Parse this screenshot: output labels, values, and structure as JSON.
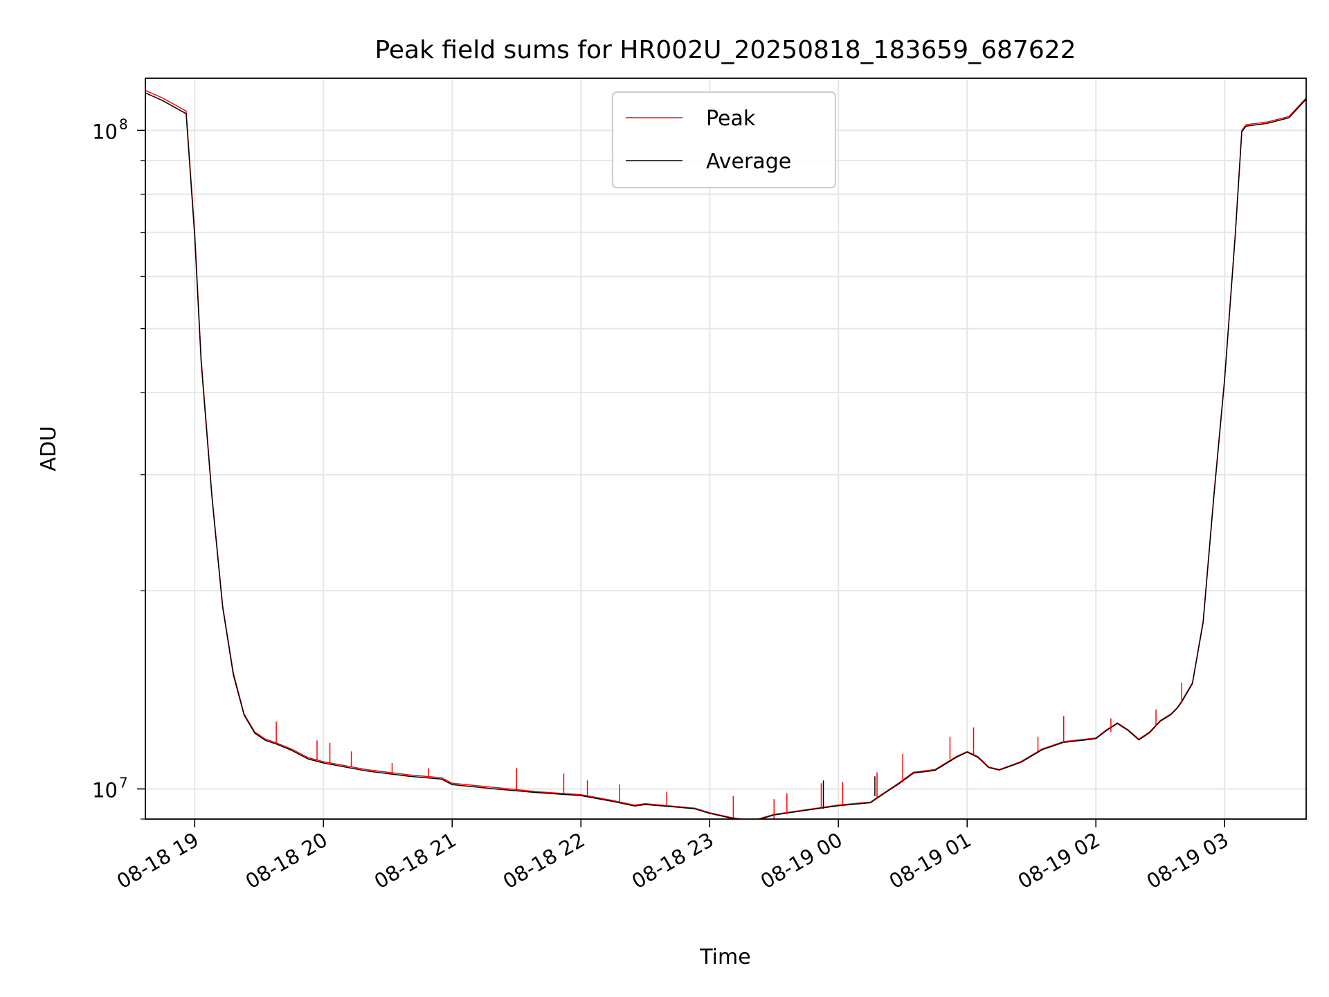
{
  "chart_data": {
    "type": "line",
    "title": "Peak field sums for HR002U_20250818_183659_687622",
    "xlabel": "Time",
    "ylabel": "ADU",
    "yscale": "log",
    "xlim": [
      "2025-08-18 18:37",
      "2025-08-19 03:38"
    ],
    "ylim": [
      9000000,
      120000000
    ],
    "x_ticks": [
      {
        "value": "2025-08-18 19:00",
        "label": "08-18 19"
      },
      {
        "value": "2025-08-18 20:00",
        "label": "08-18 20"
      },
      {
        "value": "2025-08-18 21:00",
        "label": "08-18 21"
      },
      {
        "value": "2025-08-18 22:00",
        "label": "08-18 22"
      },
      {
        "value": "2025-08-18 23:00",
        "label": "08-18 23"
      },
      {
        "value": "2025-08-19 00:00",
        "label": "08-19 00"
      },
      {
        "value": "2025-08-19 01:00",
        "label": "08-19 01"
      },
      {
        "value": "2025-08-19 02:00",
        "label": "08-19 02"
      },
      {
        "value": "2025-08-19 03:00",
        "label": "08-19 03"
      }
    ],
    "y_ticks": [
      {
        "value": 10000000,
        "label": "10",
        "exponent": "7"
      },
      {
        "value": 100000000,
        "label": "10",
        "exponent": "8"
      }
    ],
    "grid": true,
    "legend_position": "top-center",
    "series": [
      {
        "name": "Peak",
        "color": "#ff0000",
        "x": [
          "2025-08-18 18:37",
          "2025-08-18 18:45",
          "2025-08-18 18:56",
          "2025-08-18 19:00",
          "2025-08-18 19:03",
          "2025-08-18 19:08",
          "2025-08-18 19:13",
          "2025-08-18 19:18",
          "2025-08-18 19:23",
          "2025-08-18 19:28",
          "2025-08-18 19:33",
          "2025-08-18 19:38",
          "2025-08-18 19:45",
          "2025-08-18 19:53",
          "2025-08-18 20:00",
          "2025-08-18 20:20",
          "2025-08-18 20:40",
          "2025-08-18 20:55",
          "2025-08-18 21:00",
          "2025-08-18 21:20",
          "2025-08-18 21:40",
          "2025-08-18 22:00",
          "2025-08-18 22:15",
          "2025-08-18 22:25",
          "2025-08-18 22:30",
          "2025-08-18 22:45",
          "2025-08-18 22:53",
          "2025-08-18 23:00",
          "2025-08-18 23:10",
          "2025-08-18 23:20",
          "2025-08-18 23:30",
          "2025-08-18 23:45",
          "2025-08-18 23:55",
          "2025-08-19 00:00",
          "2025-08-19 00:15",
          "2025-08-19 00:20",
          "2025-08-19 00:28",
          "2025-08-19 00:35",
          "2025-08-19 00:45",
          "2025-08-19 00:55",
          "2025-08-19 01:00",
          "2025-08-19 01:05",
          "2025-08-19 01:10",
          "2025-08-19 01:15",
          "2025-08-19 01:25",
          "2025-08-19 01:35",
          "2025-08-19 01:45",
          "2025-08-19 01:55",
          "2025-08-19 02:00",
          "2025-08-19 02:05",
          "2025-08-19 02:10",
          "2025-08-19 02:15",
          "2025-08-19 02:20",
          "2025-08-19 02:25",
          "2025-08-19 02:30",
          "2025-08-19 02:35",
          "2025-08-19 02:38",
          "2025-08-19 02:40",
          "2025-08-19 02:45",
          "2025-08-19 02:50",
          "2025-08-19 02:55",
          "2025-08-19 03:00",
          "2025-08-19 03:05",
          "2025-08-19 03:08",
          "2025-08-19 03:10",
          "2025-08-19 03:20",
          "2025-08-19 03:30",
          "2025-08-19 03:38"
        ],
        "y": [
          115000000,
          112000000,
          107000000,
          70000000,
          45000000,
          28000000,
          19000000,
          15000000,
          13000000,
          12200000,
          11900000,
          11750000,
          11500000,
          11150000,
          11000000,
          10700000,
          10500000,
          10400000,
          10200000,
          10050000,
          9900000,
          9800000,
          9600000,
          9450000,
          9500000,
          9400000,
          9350000,
          9200000,
          9050000,
          8950000,
          9150000,
          9300000,
          9400000,
          9450000,
          9550000,
          9800000,
          10200000,
          10600000,
          10700000,
          11200000,
          11400000,
          11200000,
          10800000,
          10700000,
          11000000,
          11500000,
          11800000,
          11900000,
          11950000,
          12300000,
          12600000,
          12300000,
          11900000,
          12200000,
          12700000,
          13000000,
          13300000,
          13600000,
          14500000,
          18000000,
          28000000,
          42000000,
          70000000,
          100000000,
          102000000,
          103000000,
          105000000,
          112000000
        ]
      },
      {
        "name": "Average",
        "color": "#000000",
        "x": [
          "2025-08-18 18:37",
          "2025-08-18 18:45",
          "2025-08-18 18:56",
          "2025-08-18 19:00",
          "2025-08-18 19:03",
          "2025-08-18 19:08",
          "2025-08-18 19:13",
          "2025-08-18 19:18",
          "2025-08-18 19:23",
          "2025-08-18 19:28",
          "2025-08-18 19:33",
          "2025-08-18 19:38",
          "2025-08-18 19:45",
          "2025-08-18 19:53",
          "2025-08-18 20:00",
          "2025-08-18 20:20",
          "2025-08-18 20:40",
          "2025-08-18 20:55",
          "2025-08-18 21:00",
          "2025-08-18 21:20",
          "2025-08-18 21:40",
          "2025-08-18 22:00",
          "2025-08-18 22:15",
          "2025-08-18 22:25",
          "2025-08-18 22:30",
          "2025-08-18 22:45",
          "2025-08-18 22:53",
          "2025-08-18 23:00",
          "2025-08-18 23:10",
          "2025-08-18 23:20",
          "2025-08-18 23:30",
          "2025-08-18 23:45",
          "2025-08-18 23:55",
          "2025-08-19 00:00",
          "2025-08-19 00:15",
          "2025-08-19 00:20",
          "2025-08-19 00:28",
          "2025-08-19 00:35",
          "2025-08-19 00:45",
          "2025-08-19 00:55",
          "2025-08-19 01:00",
          "2025-08-19 01:05",
          "2025-08-19 01:10",
          "2025-08-19 01:15",
          "2025-08-19 01:25",
          "2025-08-19 01:35",
          "2025-08-19 01:45",
          "2025-08-19 01:55",
          "2025-08-19 02:00",
          "2025-08-19 02:05",
          "2025-08-19 02:10",
          "2025-08-19 02:15",
          "2025-08-19 02:20",
          "2025-08-19 02:25",
          "2025-08-19 02:30",
          "2025-08-19 02:35",
          "2025-08-19 02:38",
          "2025-08-19 02:40",
          "2025-08-19 02:45",
          "2025-08-19 02:50",
          "2025-08-19 02:55",
          "2025-08-19 03:00",
          "2025-08-19 03:05",
          "2025-08-19 03:08",
          "2025-08-19 03:10",
          "2025-08-19 03:20",
          "2025-08-19 03:30",
          "2025-08-19 03:38"
        ],
        "y": [
          114000000,
          111000000,
          106000000,
          69000000,
          44500000,
          27800000,
          18900000,
          14900000,
          12950000,
          12150000,
          11850000,
          11700000,
          11450000,
          11100000,
          10950000,
          10650000,
          10450000,
          10350000,
          10150000,
          10000000,
          9870000,
          9770000,
          9570000,
          9420000,
          9470000,
          9380000,
          9330000,
          9180000,
          9030000,
          8930000,
          9130000,
          9280000,
          9380000,
          9430000,
          9530000,
          9780000,
          10170000,
          10570000,
          10670000,
          11170000,
          11370000,
          11170000,
          10780000,
          10680000,
          10970000,
          11470000,
          11770000,
          11870000,
          11920000,
          12270000,
          12570000,
          12270000,
          11870000,
          12170000,
          12670000,
          12970000,
          13270000,
          13550000,
          14450000,
          17900000,
          27800000,
          41800000,
          69500000,
          99500000,
          101500000,
          102500000,
          104500000,
          111500000
        ]
      }
    ],
    "spikes": [
      {
        "series": "Peak",
        "x": "2025-08-18 19:38",
        "y_base": 11700000,
        "y_top": 12650000
      },
      {
        "series": "Peak",
        "x": "2025-08-18 19:57",
        "y_base": 11050000,
        "y_top": 11850000
      },
      {
        "series": "Peak",
        "x": "2025-08-18 20:03",
        "y_base": 10950000,
        "y_top": 11750000
      },
      {
        "series": "Peak",
        "x": "2025-08-18 20:13",
        "y_base": 10800000,
        "y_top": 11400000
      },
      {
        "series": "Peak",
        "x": "2025-08-18 20:32",
        "y_base": 10550000,
        "y_top": 10950000
      },
      {
        "series": "Peak",
        "x": "2025-08-18 20:49",
        "y_base": 10420000,
        "y_top": 10750000
      },
      {
        "series": "Peak",
        "x": "2025-08-18 21:30",
        "y_base": 9950000,
        "y_top": 10750000
      },
      {
        "series": "Peak",
        "x": "2025-08-18 21:52",
        "y_base": 9830000,
        "y_top": 10550000
      },
      {
        "series": "Peak",
        "x": "2025-08-18 22:03",
        "y_base": 9750000,
        "y_top": 10300000
      },
      {
        "series": "Peak",
        "x": "2025-08-18 22:18",
        "y_base": 9550000,
        "y_top": 10150000
      },
      {
        "series": "Peak",
        "x": "2025-08-18 22:40",
        "y_base": 9430000,
        "y_top": 9900000
      },
      {
        "series": "Peak",
        "x": "2025-08-18 23:11",
        "y_base": 9050000,
        "y_top": 9750000
      },
      {
        "series": "Peak",
        "x": "2025-08-18 23:30",
        "y_base": 8980000,
        "y_top": 9650000
      },
      {
        "series": "Peak",
        "x": "2025-08-18 23:36",
        "y_base": 9180000,
        "y_top": 9850000
      },
      {
        "series": "Peak",
        "x": "2025-08-18 23:52",
        "y_base": 9330000,
        "y_top": 10200000
      },
      {
        "series": "Peak",
        "x": "2025-08-19 00:02",
        "y_base": 9450000,
        "y_top": 10250000
      },
      {
        "series": "Peak",
        "x": "2025-08-19 00:18",
        "y_base": 9700000,
        "y_top": 10600000
      },
      {
        "series": "Peak",
        "x": "2025-08-19 00:30",
        "y_base": 10250000,
        "y_top": 11300000
      },
      {
        "series": "Peak",
        "x": "2025-08-19 00:52",
        "y_base": 11100000,
        "y_top": 12000000
      },
      {
        "series": "Peak",
        "x": "2025-08-19 01:03",
        "y_base": 11300000,
        "y_top": 12400000
      },
      {
        "series": "Peak",
        "x": "2025-08-19 01:33",
        "y_base": 11400000,
        "y_top": 12000000
      },
      {
        "series": "Peak",
        "x": "2025-08-19 01:45",
        "y_base": 11750000,
        "y_top": 12900000
      },
      {
        "series": "Peak",
        "x": "2025-08-19 02:07",
        "y_base": 12200000,
        "y_top": 12800000
      },
      {
        "series": "Peak",
        "x": "2025-08-19 02:28",
        "y_base": 12450000,
        "y_top": 13200000
      },
      {
        "series": "Peak",
        "x": "2025-08-19 02:40",
        "y_base": 13500000,
        "y_top": 14500000
      },
      {
        "series": "Average",
        "x": "2025-08-19 00:17",
        "y_base": 9750000,
        "y_top": 10450000
      },
      {
        "series": "Average",
        "x": "2025-08-18 23:53",
        "y_base": 9330000,
        "y_top": 10300000
      }
    ]
  }
}
